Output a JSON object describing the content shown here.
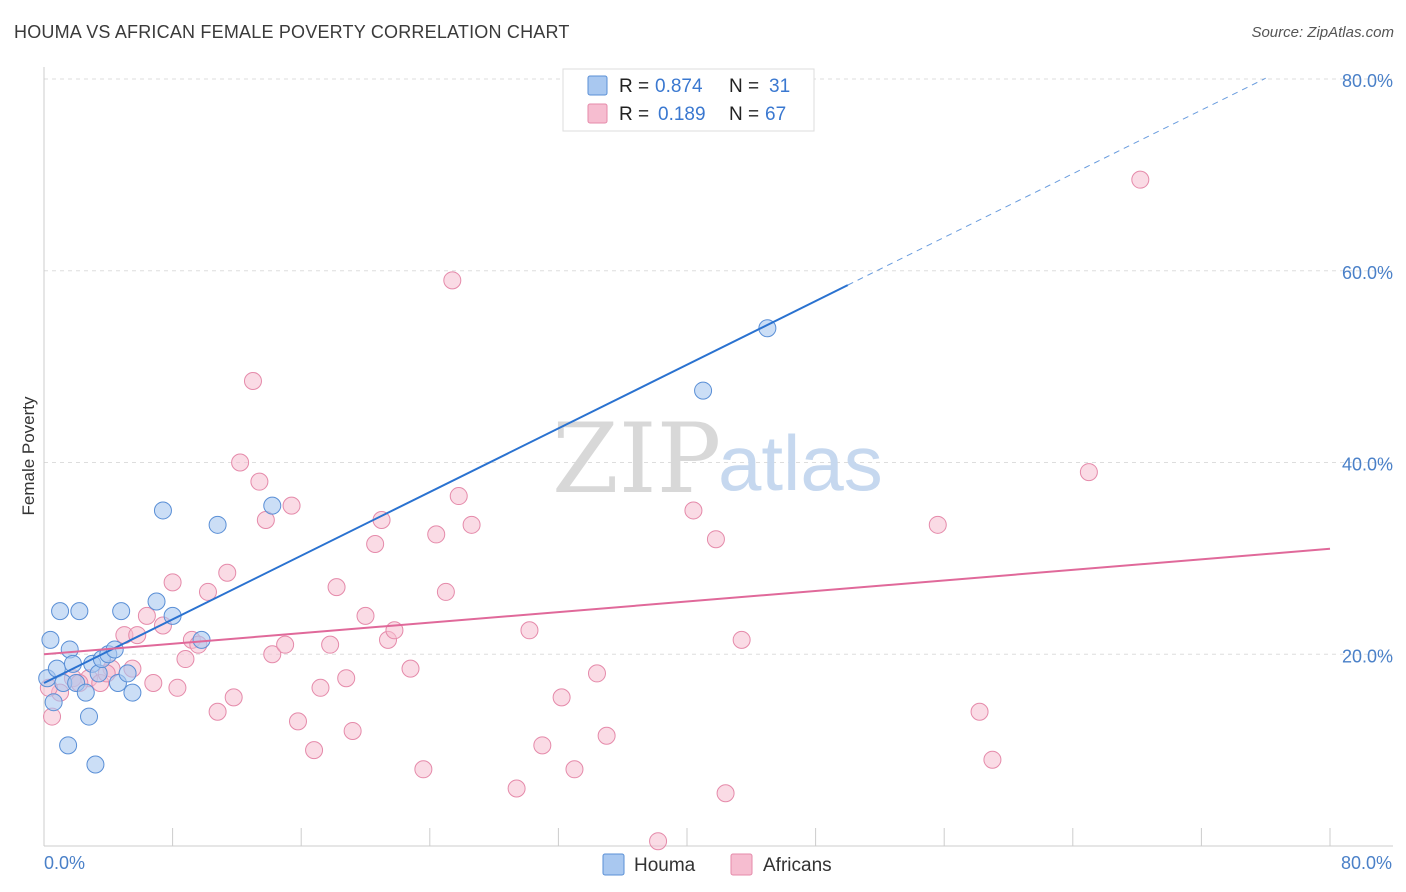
{
  "title": "HOUMA VS AFRICAN FEMALE POVERTY CORRELATION CHART",
  "source": "Source: ZipAtlas.com",
  "watermark": {
    "zip": "ZIP",
    "atlas": "atlas"
  },
  "colors": {
    "houma_fill": "#a9c8f0",
    "houma_stroke": "#5a8fd6",
    "houma_line": "#2a72d0",
    "africans_fill": "#f6bdd0",
    "africans_stroke": "#e58aaa",
    "africans_line": "#e0699a",
    "grid": "#dddddd",
    "tick_text": "#4a80c8"
  },
  "legend": {
    "houma": {
      "r_label": "R =",
      "r_value": "0.874",
      "n_label": "N =",
      "n_value": "31"
    },
    "africans": {
      "r_label": "R =",
      "r_value": "0.189",
      "n_label": "N =",
      "n_value": "67"
    }
  },
  "chart_data": {
    "type": "scatter",
    "title": "HOUMA VS AFRICAN FEMALE POVERTY CORRELATION CHART",
    "xlabel": "",
    "ylabel": "Female Poverty",
    "xlim": [
      0,
      80
    ],
    "ylim": [
      0,
      80
    ],
    "x_tick_labels": [
      "0.0%",
      "80.0%"
    ],
    "y_ticks": [
      20,
      40,
      60,
      80
    ],
    "y_tick_labels": [
      "20.0%",
      "40.0%",
      "60.0%",
      "80.0%"
    ],
    "grid": true,
    "legend_position": "top-center",
    "series": [
      {
        "name": "Houma",
        "r": 0.874,
        "n": 31,
        "trend": {
          "x0": 0,
          "y0": 17.0,
          "x1": 50,
          "y1": 58.5,
          "dashed_to_x": 76
        },
        "points": [
          [
            0.2,
            17.5
          ],
          [
            0.4,
            21.5
          ],
          [
            0.6,
            15.0
          ],
          [
            0.8,
            18.5
          ],
          [
            1.0,
            24.5
          ],
          [
            1.2,
            17.0
          ],
          [
            1.5,
            10.5
          ],
          [
            1.6,
            20.5
          ],
          [
            1.8,
            19.0
          ],
          [
            2.0,
            17.0
          ],
          [
            2.2,
            24.5
          ],
          [
            2.6,
            16.0
          ],
          [
            2.8,
            13.5
          ],
          [
            3.0,
            19.0
          ],
          [
            3.2,
            8.5
          ],
          [
            3.4,
            18.0
          ],
          [
            3.6,
            19.5
          ],
          [
            4.0,
            20.0
          ],
          [
            4.4,
            20.5
          ],
          [
            4.6,
            17.0
          ],
          [
            4.8,
            24.5
          ],
          [
            5.2,
            18.0
          ],
          [
            5.5,
            16.0
          ],
          [
            7.0,
            25.5
          ],
          [
            7.4,
            35.0
          ],
          [
            8.0,
            24.0
          ],
          [
            9.8,
            21.5
          ],
          [
            10.8,
            33.5
          ],
          [
            14.2,
            35.5
          ],
          [
            41.0,
            47.5
          ],
          [
            45.0,
            54.0
          ]
        ]
      },
      {
        "name": "Africans",
        "r": 0.189,
        "n": 67,
        "trend": {
          "x0": 0,
          "y0": 20.0,
          "x1": 80,
          "y1": 31.0
        },
        "points": [
          [
            0.5,
            13.5
          ],
          [
            1.0,
            16.0
          ],
          [
            1.8,
            17.5
          ],
          [
            2.8,
            17.5
          ],
          [
            3.5,
            17.0
          ],
          [
            4.2,
            18.5
          ],
          [
            5.0,
            22.0
          ],
          [
            5.5,
            18.5
          ],
          [
            5.8,
            22.0
          ],
          [
            6.4,
            24.0
          ],
          [
            6.8,
            17.0
          ],
          [
            7.4,
            23.0
          ],
          [
            8.0,
            27.5
          ],
          [
            8.3,
            16.5
          ],
          [
            8.8,
            19.5
          ],
          [
            9.2,
            21.5
          ],
          [
            9.6,
            21.0
          ],
          [
            10.2,
            26.5
          ],
          [
            10.8,
            14.0
          ],
          [
            11.4,
            28.5
          ],
          [
            11.8,
            15.5
          ],
          [
            12.2,
            40.0
          ],
          [
            13.0,
            48.5
          ],
          [
            13.4,
            38.0
          ],
          [
            13.8,
            34.0
          ],
          [
            14.2,
            20.0
          ],
          [
            15.0,
            21.0
          ],
          [
            15.4,
            35.5
          ],
          [
            15.8,
            13.0
          ],
          [
            16.8,
            10.0
          ],
          [
            17.2,
            16.5
          ],
          [
            17.8,
            21.0
          ],
          [
            18.2,
            27.0
          ],
          [
            18.8,
            17.5
          ],
          [
            19.2,
            12.0
          ],
          [
            20.0,
            24.0
          ],
          [
            20.6,
            31.5
          ],
          [
            21.0,
            34.0
          ],
          [
            21.4,
            21.5
          ],
          [
            21.8,
            22.5
          ],
          [
            22.8,
            18.5
          ],
          [
            23.6,
            8.0
          ],
          [
            24.4,
            32.5
          ],
          [
            25.0,
            26.5
          ],
          [
            25.4,
            59.0
          ],
          [
            25.8,
            36.5
          ],
          [
            26.6,
            33.5
          ],
          [
            29.4,
            6.0
          ],
          [
            30.2,
            22.5
          ],
          [
            31.0,
            10.5
          ],
          [
            32.2,
            15.5
          ],
          [
            33.0,
            8.0
          ],
          [
            34.4,
            18.0
          ],
          [
            35.0,
            11.5
          ],
          [
            38.2,
            0.5
          ],
          [
            40.4,
            35.0
          ],
          [
            41.8,
            32.0
          ],
          [
            42.4,
            5.5
          ],
          [
            43.4,
            21.5
          ],
          [
            55.6,
            33.5
          ],
          [
            58.2,
            14.0
          ],
          [
            59.0,
            9.0
          ],
          [
            65.0,
            39.0
          ],
          [
            68.2,
            69.5
          ],
          [
            0.3,
            16.5
          ],
          [
            2.2,
            17.0
          ],
          [
            3.9,
            18.0
          ]
        ]
      }
    ]
  },
  "bottom_legend": {
    "houma": "Houma",
    "africans": "Africans"
  }
}
